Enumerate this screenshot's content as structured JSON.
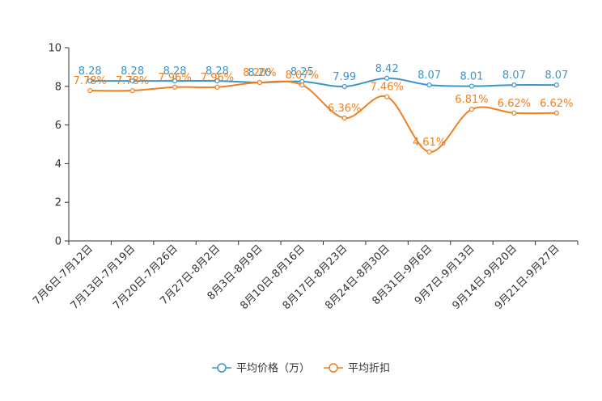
{
  "chart_data": {
    "type": "line",
    "title": "",
    "xlabel": "",
    "ylabel": "",
    "ylim": [
      0,
      10
    ],
    "yticks": [
      "0",
      "2",
      "4",
      "6",
      "8",
      "10"
    ],
    "grid": false,
    "legend_position": "bottom-center",
    "categories": [
      "7月6日-7月12日",
      "7月13日-7月19日",
      "7月20日-7月26日",
      "7月27日-8月2日",
      "8月3日-8月9日",
      "8月10日-8月16日",
      "8月17日-8月23日",
      "8月24日-8月30日",
      "8月31日-9月6日",
      "9月7日-9月13日",
      "9月14日-9月20日",
      "9月21日-9月27日"
    ],
    "series": [
      {
        "name": "平均价格（万）",
        "color": "#3a96c8",
        "values": [
          8.28,
          8.28,
          8.28,
          8.28,
          8.2,
          8.25,
          7.99,
          8.42,
          8.07,
          8.01,
          8.07,
          8.07
        ],
        "labels": [
          "8.28",
          "8.28",
          "8.28",
          "8.28",
          "8.20",
          "8.25",
          "7.99",
          "8.42",
          "8.07",
          "8.01",
          "8.07",
          "8.07"
        ]
      },
      {
        "name": "平均折扣",
        "color": "#f07f1d",
        "values": [
          7.78,
          7.78,
          7.96,
          7.96,
          8.2,
          8.07,
          6.36,
          7.46,
          4.61,
          6.81,
          6.62,
          6.62
        ],
        "labels": [
          "7.78%",
          "7.78%",
          "7.96%",
          "7.96%",
          "8.20%",
          "8.07%",
          "6.36%",
          "7.46%",
          "4.61%",
          "6.81%",
          "6.62%",
          "6.62%"
        ]
      }
    ]
  }
}
